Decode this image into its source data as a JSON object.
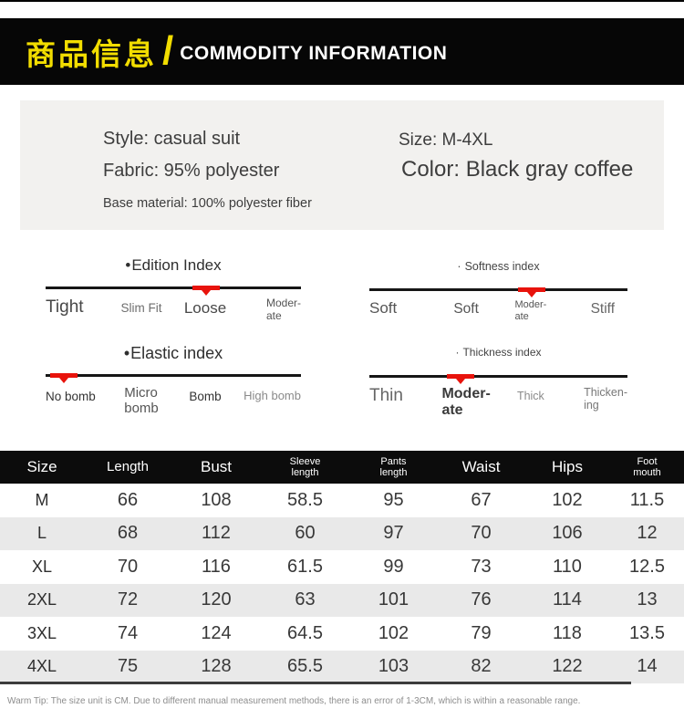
{
  "header": {
    "title_cn": "商品信息",
    "slash": "/",
    "title_en": "COMMODITY INFORMATION"
  },
  "info_box": {
    "style": "Style: casual suit",
    "fabric": "Fabric: 95% polyester",
    "base_material": "Base material: 100% polyester fiber",
    "size": "Size: M-4XL",
    "color": "Color: Black gray coffee"
  },
  "icons": {
    "bullet": "•",
    "dot": "·",
    "marker_arrow": "red-down-triangle"
  },
  "scales": [
    {
      "title": "Edition Index",
      "labels": [
        "Tight",
        "Slim Fit",
        "Loose",
        "Moder-\nate"
      ],
      "marker_left": "57.5%"
    },
    {
      "title": "Softness index",
      "labels": [
        "Soft",
        "Soft",
        "Moder-\nate",
        "Stiff"
      ],
      "marker_left": "57.6%"
    },
    {
      "title": "Elastic index",
      "labels": [
        "No bomb",
        "Micro\nbomb",
        "Bomb",
        "High bomb"
      ],
      "marker_left": "1.8%"
    },
    {
      "title": "Thickness index",
      "labels": [
        "Thin",
        "Moder-\nate",
        "Thick",
        "Thicken-\ning"
      ],
      "marker_left": "30%"
    }
  ],
  "size_table": {
    "headers": [
      "Size",
      "Length",
      "Bust",
      "Sleeve\nlength",
      "Pants\nlength",
      "Waist",
      "Hips",
      "Foot\nmouth"
    ],
    "rows": [
      [
        "M",
        "66",
        "108",
        "58.5",
        "95",
        "67",
        "102",
        "11.5"
      ],
      [
        "L",
        "68",
        "112",
        "60",
        "97",
        "70",
        "106",
        "12"
      ],
      [
        "XL",
        "70",
        "116",
        "61.5",
        "99",
        "73",
        "110",
        "12.5"
      ],
      [
        "2XL",
        "72",
        "120",
        "63",
        "101",
        "76",
        "114",
        "13"
      ],
      [
        "3XL",
        "74",
        "124",
        "64.5",
        "102",
        "79",
        "118",
        "13.5"
      ],
      [
        "4XL",
        "75",
        "128",
        "65.5",
        "103",
        "82",
        "122",
        "14"
      ]
    ]
  },
  "footer": {
    "tip": "Warm Tip: The size unit is CM. Due to different manual measurement methods, there is an error of 1-3CM, which is within a reasonable range."
  },
  "colors": {
    "accent_yellow": "#f2dd00",
    "marker_red": "#e8130c",
    "header_bg": "#060606",
    "row_alt": "#e9e9e9",
    "info_bg": "#f2f1ef"
  }
}
